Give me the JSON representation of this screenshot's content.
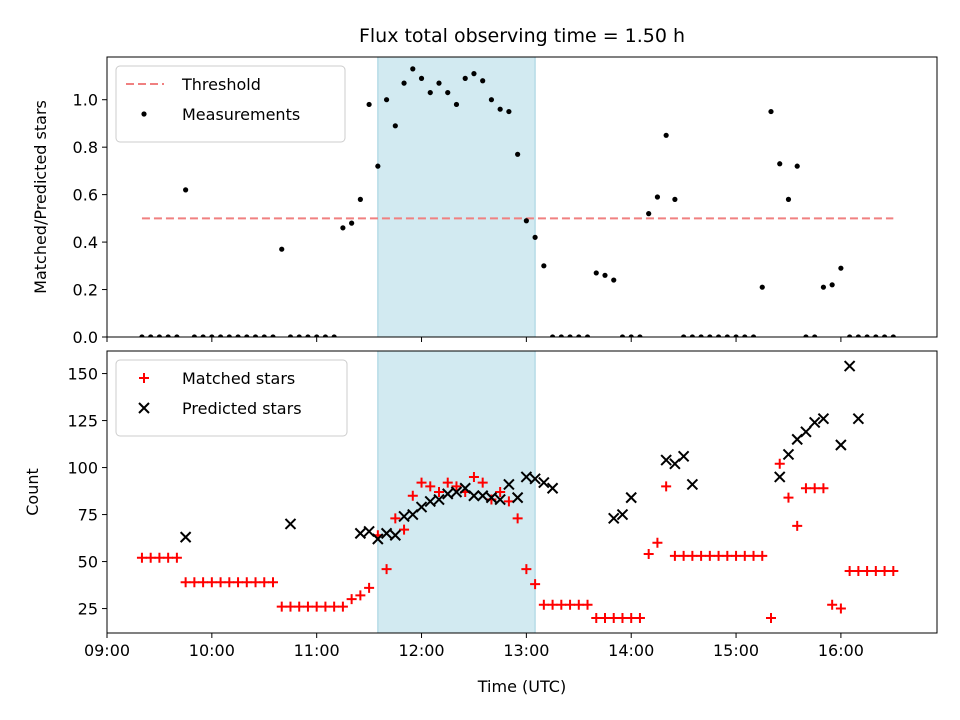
{
  "chart_data": [
    {
      "type": "scatter",
      "title": "Flux total observing time = 1.50 h",
      "xlabel": "",
      "ylabel": "Matched/Predicted stars",
      "xlim": [
        "09:00",
        "16:55"
      ],
      "ylim": [
        0,
        1.18
      ],
      "y_ticks": [
        0.0,
        0.2,
        0.4,
        0.6,
        0.8,
        1.0
      ],
      "y_tick_labels": [
        "0.0",
        "0.2",
        "0.4",
        "0.6",
        "0.8",
        "1.0"
      ],
      "x_ticks": [
        "09:00",
        "10:00",
        "11:00",
        "12:00",
        "13:00",
        "14:00",
        "15:00",
        "16:00"
      ],
      "x_tick_labels_shown": false,
      "grid": false,
      "legend_position": "top-left",
      "shaded_interval": {
        "x": [
          "11:35",
          "13:05"
        ],
        "color": "#add8e6"
      },
      "threshold": {
        "name": "Threshold",
        "y": 0.5,
        "x": [
          "09:20",
          "16:30"
        ],
        "color": "#f08080",
        "style": "dashed"
      },
      "series": [
        {
          "name": "Measurements",
          "color": "#000000",
          "marker": "dot",
          "x": [
            "09:20",
            "09:25",
            "09:30",
            "09:35",
            "09:40",
            "09:45",
            "09:50",
            "09:55",
            "10:00",
            "10:05",
            "10:10",
            "10:15",
            "10:20",
            "10:25",
            "10:30",
            "10:35",
            "10:40",
            "10:45",
            "10:50",
            "10:55",
            "11:00",
            "11:05",
            "11:10",
            "11:15",
            "11:20",
            "11:25",
            "11:30",
            "11:35",
            "11:40",
            "11:45",
            "11:50",
            "11:55",
            "12:00",
            "12:05",
            "12:10",
            "12:15",
            "12:20",
            "12:25",
            "12:30",
            "12:35",
            "12:40",
            "12:45",
            "12:50",
            "12:55",
            "13:00",
            "13:05",
            "13:10",
            "13:15",
            "13:20",
            "13:25",
            "13:30",
            "13:35",
            "13:40",
            "13:45",
            "13:50",
            "13:55",
            "14:00",
            "14:05",
            "14:10",
            "14:15",
            "14:20",
            "14:25",
            "14:30",
            "14:35",
            "14:40",
            "14:45",
            "14:50",
            "14:55",
            "15:00",
            "15:05",
            "15:10",
            "15:15",
            "15:20",
            "15:25",
            "15:30",
            "15:35",
            "15:40",
            "15:45",
            "15:50",
            "15:55",
            "16:00",
            "16:05",
            "16:10",
            "16:15",
            "16:20",
            "16:25",
            "16:30"
          ],
          "y": [
            0,
            0,
            0,
            0,
            0,
            0.62,
            0,
            0,
            0,
            0,
            0,
            0,
            0,
            0,
            0,
            0,
            0.37,
            0,
            0,
            0,
            0,
            0,
            0,
            0.46,
            0.48,
            0.58,
            0.98,
            0.72,
            1.0,
            0.89,
            1.07,
            1.13,
            1.09,
            1.03,
            1.07,
            1.03,
            0.98,
            1.09,
            1.11,
            1.08,
            1.0,
            0.96,
            0.95,
            0.77,
            0.49,
            0.42,
            0.3,
            0,
            0,
            0,
            0,
            0,
            0.27,
            0.26,
            0.24,
            0,
            0,
            0,
            0.52,
            0.59,
            0.85,
            0.58,
            0,
            0,
            0,
            0,
            0,
            0,
            0,
            0,
            0,
            0.21,
            0.95,
            0.73,
            0.58,
            0.72,
            0,
            0,
            0.21,
            0.22,
            0.29,
            0,
            0,
            0,
            0,
            0,
            0
          ]
        }
      ]
    },
    {
      "type": "scatter",
      "title": "",
      "xlabel": "Time (UTC)",
      "ylabel": "Count",
      "xlim": [
        "09:00",
        "16:55"
      ],
      "ylim": [
        12,
        162
      ],
      "y_ticks": [
        25,
        50,
        75,
        100,
        125,
        150
      ],
      "y_tick_labels": [
        "25",
        "50",
        "75",
        "100",
        "125",
        "150"
      ],
      "x_ticks": [
        "09:00",
        "10:00",
        "11:00",
        "12:00",
        "13:00",
        "14:00",
        "15:00",
        "16:00"
      ],
      "x_tick_labels": [
        "09:00",
        "10:00",
        "11:00",
        "12:00",
        "13:00",
        "14:00",
        "15:00",
        "16:00"
      ],
      "grid": false,
      "legend_position": "top-left",
      "shaded_interval": {
        "x": [
          "11:35",
          "13:05"
        ],
        "color": "#add8e6"
      },
      "series": [
        {
          "name": "Matched stars",
          "color": "#ff0000",
          "marker": "plus",
          "x": [
            "09:20",
            "09:25",
            "09:30",
            "09:35",
            "09:40",
            "09:45",
            "09:50",
            "09:55",
            "10:00",
            "10:05",
            "10:10",
            "10:15",
            "10:20",
            "10:25",
            "10:30",
            "10:35",
            "10:40",
            "10:45",
            "10:50",
            "10:55",
            "11:00",
            "11:05",
            "11:10",
            "11:15",
            "11:20",
            "11:25",
            "11:30",
            "11:35",
            "11:40",
            "11:45",
            "11:50",
            "11:55",
            "12:00",
            "12:05",
            "12:10",
            "12:15",
            "12:20",
            "12:25",
            "12:30",
            "12:35",
            "12:40",
            "12:45",
            "12:50",
            "12:55",
            "13:00",
            "13:05",
            "13:10",
            "13:15",
            "13:20",
            "13:25",
            "13:30",
            "13:35",
            "13:40",
            "13:45",
            "13:50",
            "13:55",
            "14:00",
            "14:05",
            "14:10",
            "14:15",
            "14:20",
            "14:25",
            "14:30",
            "14:35",
            "14:40",
            "14:45",
            "14:50",
            "14:55",
            "15:00",
            "15:05",
            "15:10",
            "15:15",
            "15:20",
            "15:25",
            "15:30",
            "15:35",
            "15:40",
            "15:45",
            "15:50",
            "15:55",
            "16:00",
            "16:05",
            "16:10",
            "16:15",
            "16:20",
            "16:25",
            "16:30"
          ],
          "y": [
            52,
            52,
            52,
            52,
            52,
            39,
            39,
            39,
            39,
            39,
            39,
            39,
            39,
            39,
            39,
            39,
            26,
            26,
            26,
            26,
            26,
            26,
            26,
            26,
            30,
            32,
            36,
            64,
            46,
            73,
            67,
            85,
            92,
            90,
            87,
            92,
            90,
            87,
            95,
            92,
            83,
            87,
            82,
            73,
            46,
            38,
            27,
            27,
            27,
            27,
            27,
            27,
            20,
            20,
            20,
            20,
            20,
            20,
            54,
            60,
            90,
            53,
            53,
            53,
            53,
            53,
            53,
            53,
            53,
            53,
            53,
            53,
            20,
            102,
            84,
            69,
            89,
            89,
            89,
            27,
            25,
            45,
            45,
            45,
            45,
            45,
            45
          ]
        },
        {
          "name": "Predicted stars",
          "color": "#000000",
          "marker": "x",
          "x": [
            "09:45",
            "10:45",
            "11:25",
            "11:30",
            "11:35",
            "11:40",
            "11:45",
            "11:50",
            "11:55",
            "12:00",
            "12:05",
            "12:10",
            "12:15",
            "12:20",
            "12:25",
            "12:30",
            "12:35",
            "12:40",
            "12:45",
            "12:50",
            "12:55",
            "13:00",
            "13:05",
            "13:10",
            "13:15",
            "13:50",
            "13:55",
            "14:00",
            "14:20",
            "14:25",
            "14:30",
            "14:35",
            "15:25",
            "15:30",
            "15:35",
            "15:40",
            "15:45",
            "15:50",
            "16:00",
            "16:05",
            "16:10"
          ],
          "y": [
            63,
            70,
            65,
            66,
            62,
            65,
            64,
            74,
            75,
            79,
            82,
            83,
            86,
            87,
            89,
            85,
            85,
            84,
            83,
            91,
            84,
            95,
            94,
            92,
            89,
            73,
            75,
            84,
            104,
            102,
            106,
            91,
            95,
            107,
            115,
            119,
            124,
            126,
            112,
            154,
            126
          ]
        }
      ]
    }
  ]
}
